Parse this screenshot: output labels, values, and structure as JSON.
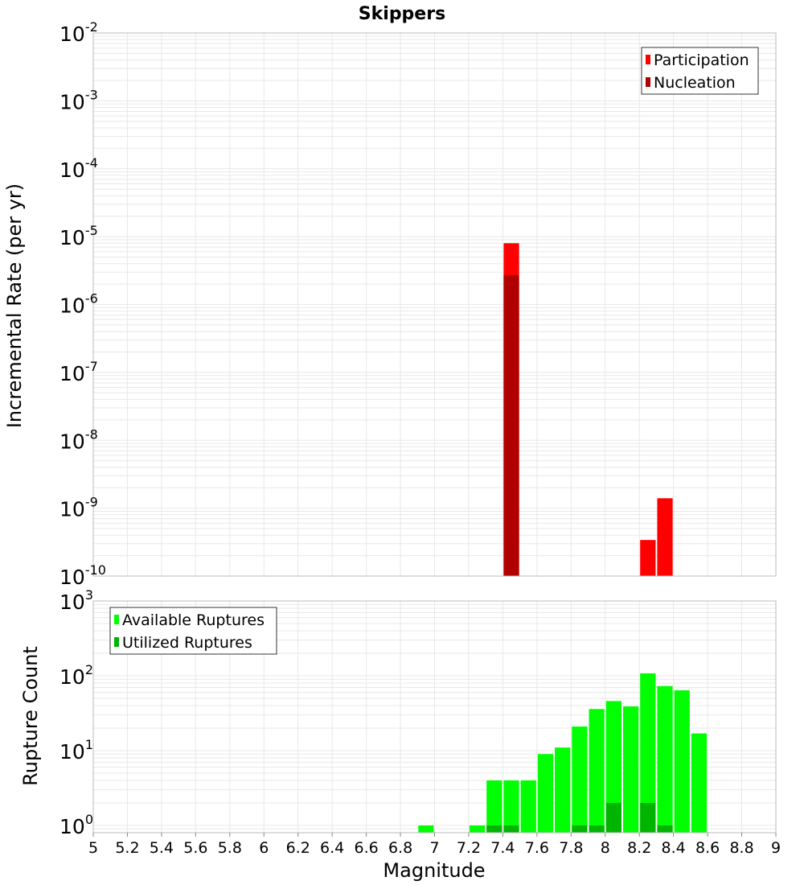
{
  "title": "Skippers",
  "xlabel": "Magnitude",
  "colors": {
    "participation": "#ff0000",
    "nucleation": "#b00000",
    "available": "#00ff00",
    "utilized": "#00b400",
    "grid": "#e8e8e8",
    "frame": "#bbbbbb"
  },
  "x_ticks": [
    "5",
    "5.2",
    "5.4",
    "5.6",
    "5.8",
    "6",
    "6.2",
    "6.4",
    "6.6",
    "6.8",
    "7",
    "7.2",
    "7.4",
    "7.6",
    "7.8",
    "8",
    "8.2",
    "8.4",
    "8.6",
    "8.8",
    "9"
  ],
  "chart_data": [
    {
      "type": "bar",
      "ylabel": "Incremental Rate (per yr)",
      "yscale": "log",
      "ylim": [
        1e-10,
        0.01
      ],
      "xlim": [
        5,
        9
      ],
      "y_ticks": [
        {
          "base": "10",
          "exp": "-10"
        },
        {
          "base": "10",
          "exp": "-9"
        },
        {
          "base": "10",
          "exp": "-8"
        },
        {
          "base": "10",
          "exp": "-7"
        },
        {
          "base": "10",
          "exp": "-6"
        },
        {
          "base": "10",
          "exp": "-5"
        },
        {
          "base": "10",
          "exp": "-4"
        },
        {
          "base": "10",
          "exp": "-3"
        },
        {
          "base": "10",
          "exp": "-2"
        }
      ],
      "legend_position": "top-right",
      "series": [
        {
          "name": "Participation",
          "color_key": "participation",
          "points": [
            {
              "x": 7.45,
              "y": 8e-06
            },
            {
              "x": 8.25,
              "y": 3.4e-10
            },
            {
              "x": 8.35,
              "y": 1.4e-09
            }
          ]
        },
        {
          "name": "Nucleation",
          "color_key": "nucleation",
          "points": [
            {
              "x": 7.45,
              "y": 2.7e-06
            }
          ]
        }
      ],
      "grid": true
    },
    {
      "type": "bar",
      "ylabel": "Rupture Count",
      "yscale": "log",
      "ylim": [
        0.8,
        1000
      ],
      "xlim": [
        5,
        9
      ],
      "y_ticks": [
        {
          "base": "10",
          "exp": "0"
        },
        {
          "base": "10",
          "exp": "1"
        },
        {
          "base": "10",
          "exp": "2"
        },
        {
          "base": "10",
          "exp": "3"
        }
      ],
      "legend_position": "top-left",
      "series": [
        {
          "name": "Available Ruptures",
          "color_key": "available",
          "points": [
            {
              "x": 6.95,
              "y": 1
            },
            {
              "x": 7.25,
              "y": 1
            },
            {
              "x": 7.35,
              "y": 4
            },
            {
              "x": 7.45,
              "y": 4
            },
            {
              "x": 7.55,
              "y": 4
            },
            {
              "x": 7.65,
              "y": 9
            },
            {
              "x": 7.75,
              "y": 11
            },
            {
              "x": 7.85,
              "y": 21
            },
            {
              "x": 7.95,
              "y": 36
            },
            {
              "x": 8.05,
              "y": 46
            },
            {
              "x": 8.15,
              "y": 39
            },
            {
              "x": 8.25,
              "y": 108
            },
            {
              "x": 8.35,
              "y": 73
            },
            {
              "x": 8.45,
              "y": 64
            },
            {
              "x": 8.55,
              "y": 17
            }
          ]
        },
        {
          "name": "Utilized Ruptures",
          "color_key": "utilized",
          "points": [
            {
              "x": 7.35,
              "y": 1
            },
            {
              "x": 7.45,
              "y": 1
            },
            {
              "x": 7.85,
              "y": 1
            },
            {
              "x": 7.95,
              "y": 1
            },
            {
              "x": 8.05,
              "y": 2
            },
            {
              "x": 8.25,
              "y": 2
            },
            {
              "x": 8.35,
              "y": 1
            }
          ]
        }
      ],
      "grid": true
    }
  ]
}
